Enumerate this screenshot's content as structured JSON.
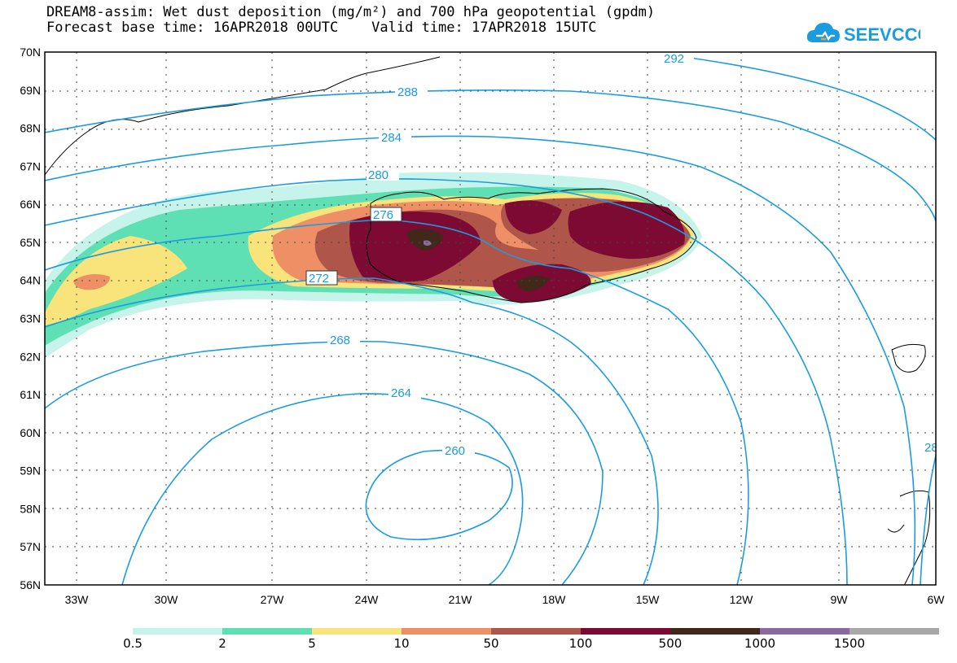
{
  "title": {
    "line1": "DREAM8-assim: Wet dust deposition (mg/m²) and 700 hPa geopotential (gpdm)",
    "line2": "Forecast base time: 16APR2018 00UTC    Valid time: 17APR2018 15UTC"
  },
  "logo": {
    "text": "SEEVCCC",
    "color": "#1b9ce0"
  },
  "map": {
    "lon_ticks": [
      "33W",
      "30W",
      "27W",
      "24W",
      "21W",
      "18W",
      "15W",
      "12W",
      "9W",
      "6W"
    ],
    "lat_ticks": [
      "70N",
      "69N",
      "68N",
      "67N",
      "66N",
      "65N",
      "64N",
      "63N",
      "62N",
      "61N",
      "60N",
      "59N",
      "58N",
      "57N",
      "56N"
    ],
    "contour_color": "#1b9ce0",
    "contours": [
      {
        "value": "292"
      },
      {
        "value": "288"
      },
      {
        "value": "284"
      },
      {
        "value": "280"
      },
      {
        "value": "276"
      },
      {
        "value": "272"
      },
      {
        "value": "268"
      },
      {
        "value": "264"
      },
      {
        "value": "260"
      },
      {
        "value": "28"
      }
    ]
  },
  "colorbar": {
    "labels": [
      "0.5",
      "2",
      "5",
      "10",
      "50",
      "100",
      "500",
      "1000",
      "1500"
    ],
    "colors": [
      "#c6f3ea",
      "#5fe0b4",
      "#f8e47a",
      "#ee8f66",
      "#b0554a",
      "#7c0a32",
      "#42281a",
      "#8a6aa0",
      "#a8a8a8"
    ]
  }
}
